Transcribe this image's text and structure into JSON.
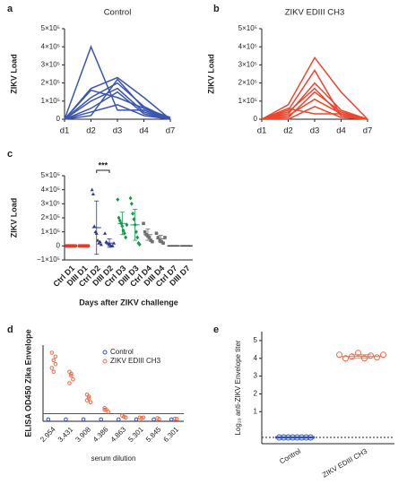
{
  "chart_data": [
    {
      "type": "line",
      "label": "a",
      "title": "Control",
      "y_label": "ZIKV Load",
      "color": "#3a56b0",
      "categories": [
        "d1",
        "d2",
        "d3",
        "d4",
        "d7"
      ],
      "series": [
        {
          "values": [
            0,
            400000,
            50000,
            50000,
            0
          ]
        },
        {
          "values": [
            0,
            170000,
            230000,
            120000,
            0
          ]
        },
        {
          "values": [
            0,
            160000,
            120000,
            60000,
            10000
          ]
        },
        {
          "values": [
            0,
            120000,
            200000,
            70000,
            0
          ]
        },
        {
          "values": [
            0,
            60000,
            150000,
            30000,
            0
          ]
        },
        {
          "values": [
            0,
            40000,
            80000,
            20000,
            0
          ]
        },
        {
          "values": [
            0,
            100000,
            170000,
            40000,
            0
          ]
        },
        {
          "values": [
            0,
            20000,
            220000,
            60000,
            0
          ]
        }
      ],
      "ylim": [
        0,
        500000
      ],
      "yticks": [
        0,
        {
          "value": 100000,
          "label": "1×10⁵"
        },
        {
          "value": 200000,
          "label": "2×10⁵"
        },
        {
          "value": 300000,
          "label": "3×10⁵"
        },
        {
          "value": 400000,
          "label": "4×10⁵"
        },
        {
          "value": 500000,
          "label": "5×10⁵"
        }
      ]
    },
    {
      "type": "line",
      "label": "b",
      "title": "ZIKV EDIII CH3",
      "y_label": "ZIKV Load",
      "color": "#f0442c",
      "categories": [
        "d1",
        "d2",
        "d3",
        "d4",
        "d7"
      ],
      "series": [
        {
          "values": [
            0,
            80000,
            340000,
            150000,
            0
          ]
        },
        {
          "values": [
            0,
            50000,
            270000,
            20000,
            0
          ]
        },
        {
          "values": [
            0,
            30000,
            200000,
            50000,
            0
          ]
        },
        {
          "values": [
            0,
            10000,
            150000,
            40000,
            0
          ]
        },
        {
          "values": [
            0,
            20000,
            110000,
            30000,
            0
          ]
        },
        {
          "values": [
            0,
            0,
            70000,
            10000,
            0
          ]
        },
        {
          "values": [
            0,
            40000,
            170000,
            20000,
            0
          ]
        },
        {
          "values": [
            0,
            60000,
            30000,
            30000,
            0
          ]
        }
      ],
      "ylim": [
        0,
        500000
      ],
      "yticks": [
        0,
        {
          "value": 100000,
          "label": "1×10⁵"
        },
        {
          "value": 200000,
          "label": "2×10⁵"
        },
        {
          "value": 300000,
          "label": "3×10⁵"
        },
        {
          "value": 400000,
          "label": "4×10⁵"
        },
        {
          "value": 500000,
          "label": "5×10⁵"
        }
      ]
    },
    {
      "type": "strip",
      "label": "c",
      "y_label": "ZIKV Load",
      "x_label": "Days after ZIKV challenge",
      "annotation": "***",
      "categories": [
        "Ctrl D1",
        "DIII D1",
        "Ctrl D2",
        "DIII D2",
        "Ctrl D3",
        "DIII D3",
        "Ctrl D4",
        "DIII D4",
        "Ctrl D7",
        "DIII D7"
      ],
      "colors": [
        "#e8392a",
        "#e8392a",
        "#2b3a8f",
        "#2b3a8f",
        "#1a9850",
        "#1a9850",
        "#707070",
        "#707070",
        "#404040",
        "#404040"
      ],
      "markers": [
        "circle",
        "circle",
        "triangle",
        "triangle",
        "diamond",
        "diamond",
        "square",
        "square",
        "dash",
        "dash"
      ],
      "values": [
        [
          0,
          0,
          0,
          0,
          0,
          0,
          0,
          0
        ],
        [
          0,
          0,
          0,
          0,
          0,
          0,
          0,
          0
        ],
        [
          400000,
          370000,
          140000,
          100000,
          90000,
          40000,
          20000,
          30000,
          10000
        ],
        [
          90000,
          30000,
          20000,
          10000,
          10000,
          0,
          0,
          20000
        ],
        [
          330000,
          200000,
          180000,
          160000,
          140000,
          110000,
          90000,
          60000,
          150000
        ],
        [
          340000,
          300000,
          230000,
          190000,
          150000,
          100000,
          60000,
          20000,
          10000
        ],
        [
          160000,
          100000,
          80000,
          70000,
          60000,
          40000,
          30000
        ],
        [
          90000,
          60000,
          40000,
          30000,
          20000,
          60000
        ],
        [
          0,
          0,
          0,
          0,
          0,
          0,
          0,
          0
        ],
        [
          0,
          0,
          0,
          0,
          0,
          0,
          0,
          0
        ]
      ],
      "means": [
        0,
        0,
        130000,
        20000,
        160000,
        150000,
        80000,
        50000,
        0,
        0
      ],
      "sds": [
        0,
        0,
        190000,
        30000,
        80000,
        110000,
        40000,
        25000,
        0,
        0
      ],
      "ylim": [
        -100000,
        500000
      ],
      "yticks": [
        {
          "value": -100000,
          "label": "−1×10⁵"
        },
        0,
        {
          "value": 100000,
          "label": "1×10⁵"
        },
        {
          "value": 200000,
          "label": "2×10⁵"
        },
        {
          "value": 300000,
          "label": "3×10⁵"
        },
        {
          "value": 400000,
          "label": "4×10⁵"
        },
        {
          "value": 500000,
          "label": "5×10⁵"
        }
      ]
    },
    {
      "type": "dot",
      "label": "d",
      "y_label": "ELISA  OD450 Zika Envelope",
      "x_label": "serum dilution",
      "legend": "top-right",
      "categories": [
        "2.954",
        "3.431",
        "3.908",
        "4.386",
        "4.863",
        "5.301",
        "5.845",
        "6.301"
      ],
      "series": [
        {
          "name": "Control",
          "color": "#3050c8",
          "values": [
            [
              0.05
            ],
            [
              0.05
            ],
            [
              0.05
            ],
            [
              0.05
            ],
            [
              0.05
            ],
            [
              0.05
            ],
            [
              0.05
            ],
            [
              0.05
            ]
          ]
        },
        {
          "name": "ZIKV EDIII CH3",
          "color": "#ef6a45",
          "values": [
            [
              1.8,
              1.6,
              1.5,
              1.4,
              1.3,
              1.7
            ],
            [
              1.3,
              1.2,
              1.1,
              1.0,
              1.25
            ],
            [
              0.7,
              0.6,
              0.5,
              0.55,
              0.65
            ],
            [
              0.35,
              0.3,
              0.25,
              0.3
            ],
            [
              0.15,
              0.12,
              0.1
            ],
            [
              0.1,
              0.08,
              0.1
            ],
            [
              0.08,
              0.06
            ],
            [
              0.07,
              0.06
            ]
          ]
        }
      ],
      "cutoff": 0.2,
      "ylim": [
        0,
        2
      ]
    },
    {
      "type": "strip",
      "label": "e",
      "y_label": "Log₁₀ anti-ZIKV Envelope titer",
      "categories": [
        "Control",
        "ZIKV EDIII CH3"
      ],
      "colors": [
        "#3050c8",
        "#ef6a45"
      ],
      "markers": [
        "circle",
        "circle"
      ],
      "values": [
        [
          -0.45,
          -0.45,
          -0.45,
          -0.45,
          -0.45,
          -0.45,
          -0.45,
          -0.45
        ],
        [
          4.2,
          4.0,
          4.1,
          4.3,
          4.0,
          4.15,
          4.05,
          4.2
        ]
      ],
      "means": [
        -0.45,
        4.1
      ],
      "sds": [
        0,
        0.1
      ],
      "detection_limit": -0.45,
      "ylim": [
        -0.8,
        5.5
      ],
      "yticks": [
        1,
        2,
        3,
        4,
        5
      ]
    }
  ]
}
